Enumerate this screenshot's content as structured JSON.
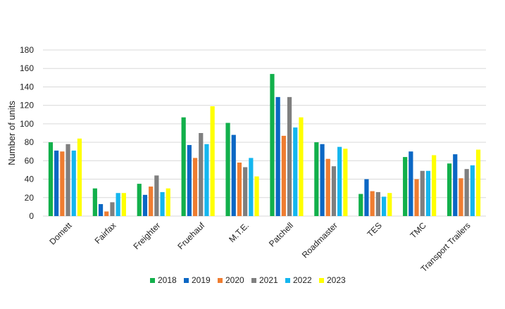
{
  "chart_data": {
    "type": "bar",
    "title": "",
    "xlabel": "",
    "ylabel": "Number of units",
    "ylim": [
      0,
      180
    ],
    "yticks": [
      0,
      20,
      40,
      60,
      80,
      100,
      120,
      140,
      160,
      180
    ],
    "grid": true,
    "legend": "bottom",
    "categories": [
      "Domett",
      "Fairfax",
      "Freighter",
      "Fruehauf",
      "M.T.E.",
      "Patchell",
      "Roadmaster",
      "TES",
      "TMC",
      "Transport Trailers"
    ],
    "series": [
      {
        "name": "2018",
        "color": "#12b04b",
        "values": [
          80,
          30,
          35,
          107,
          101,
          154,
          80,
          24,
          64,
          57
        ]
      },
      {
        "name": "2019",
        "color": "#0b67c4",
        "values": [
          71,
          13,
          23,
          77,
          88,
          129,
          78,
          40,
          70,
          67
        ]
      },
      {
        "name": "2020",
        "color": "#ef7d31",
        "values": [
          70,
          5,
          32,
          63,
          58,
          87,
          62,
          27,
          40,
          41
        ]
      },
      {
        "name": "2021",
        "color": "#7f7f7f",
        "values": [
          78,
          15,
          44,
          90,
          53,
          129,
          54,
          26,
          49,
          51
        ]
      },
      {
        "name": "2022",
        "color": "#14b6ef",
        "values": [
          71,
          25,
          26,
          78,
          63,
          96,
          75,
          21,
          49,
          55
        ]
      },
      {
        "name": "2023",
        "color": "#ffff00",
        "values": [
          84,
          25,
          30,
          119,
          43,
          107,
          73,
          25,
          66,
          72
        ]
      }
    ]
  }
}
